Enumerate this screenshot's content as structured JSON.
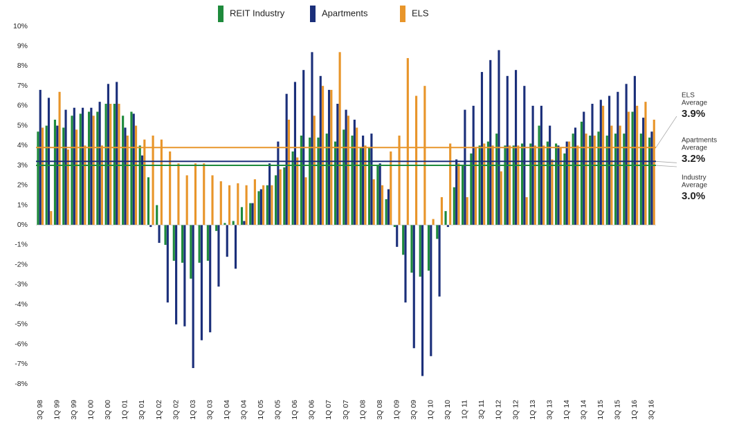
{
  "chart_data": {
    "type": "bar",
    "categories": [
      "3Q 98",
      null,
      "1Q 99",
      null,
      "3Q 99",
      null,
      "1Q 00",
      null,
      "3Q 00",
      null,
      "1Q 01",
      null,
      "3Q 01",
      null,
      "1Q 02",
      null,
      "3Q 02",
      null,
      "1Q 03",
      null,
      "3Q 03",
      null,
      "1Q 04",
      null,
      "3Q 04",
      null,
      "1Q 05",
      null,
      "3Q 05",
      null,
      "1Q 06",
      null,
      "3Q 06",
      null,
      "1Q 07",
      null,
      "3Q 07",
      null,
      "1Q 08",
      null,
      "3Q 08",
      null,
      "1Q 09",
      null,
      "3Q 09",
      null,
      "1Q 10",
      null,
      "3Q 10",
      null,
      "1Q 11",
      null,
      "3Q 11",
      null,
      "1Q 12",
      null,
      "3Q 12",
      null,
      "1Q 13",
      null,
      "3Q 13",
      null,
      "1Q 14",
      null,
      "3Q 14",
      null,
      "1Q 15",
      null,
      "3Q 15",
      null,
      "1Q 16",
      null,
      "3Q 16"
    ],
    "series": [
      {
        "name": "REIT Industry",
        "color": "#1e8a3c",
        "values": [
          4.7,
          5.0,
          5.3,
          4.9,
          5.5,
          5.6,
          5.7,
          5.7,
          6.1,
          6.1,
          5.5,
          5.7,
          4.0,
          2.4,
          1.0,
          -1.0,
          -1.8,
          -1.9,
          -2.7,
          -1.9,
          -1.8,
          -0.3,
          0.1,
          0.2,
          0.9,
          1.1,
          1.7,
          2.0,
          2.5,
          2.9,
          3.7,
          4.5,
          4.4,
          4.4,
          4.6,
          4.2,
          4.8,
          4.5,
          3.9,
          3.9,
          3.0,
          1.3,
          -0.1,
          -1.5,
          -2.4,
          -2.6,
          -2.3,
          -0.7,
          0.7,
          1.9,
          3.0,
          3.6,
          4.0,
          4.2,
          4.6,
          4.0,
          4.0,
          4.1,
          4.1,
          5.0,
          4.2,
          4.1,
          3.6,
          4.6,
          5.2,
          4.5,
          4.7,
          4.5,
          4.6,
          4.6,
          5.7,
          4.6,
          4.4
        ]
      },
      {
        "name": "Apartments",
        "color": "#1b2f7a",
        "values": [
          6.8,
          6.4,
          5.0,
          5.8,
          5.9,
          5.9,
          5.9,
          6.2,
          7.1,
          7.2,
          4.9,
          5.6,
          3.5,
          -0.1,
          -0.9,
          -3.9,
          -5.0,
          -5.1,
          -7.2,
          -5.8,
          -5.4,
          -3.1,
          -1.6,
          -2.2,
          0.2,
          1.1,
          1.8,
          3.1,
          4.2,
          6.6,
          7.2,
          7.8,
          8.7,
          7.5,
          6.8,
          6.1,
          5.8,
          5.3,
          4.5,
          4.6,
          3.1,
          1.8,
          -1.1,
          -3.9,
          -6.2,
          -7.6,
          -6.6,
          -3.6,
          -0.1,
          3.3,
          5.8,
          6.0,
          7.7,
          8.3,
          8.8,
          7.5,
          7.8,
          7.0,
          6.0,
          6.0,
          5.0,
          4.0,
          4.2,
          4.9,
          5.7,
          6.1,
          6.3,
          6.5,
          6.7,
          7.1,
          7.5,
          5.4,
          4.7
        ]
      },
      {
        "name": "ELS",
        "color": "#e8952a",
        "values": [
          4.9,
          0.7,
          6.7,
          3.8,
          4.8,
          4.0,
          5.5,
          4.0,
          6.1,
          6.1,
          4.5,
          5.0,
          4.3,
          4.5,
          4.3,
          3.7,
          3.1,
          2.5,
          3.1,
          3.1,
          2.5,
          2.2,
          2.0,
          2.1,
          2.0,
          2.3,
          2.0,
          2.0,
          2.8,
          5.3,
          3.4,
          2.4,
          5.5,
          7.0,
          6.8,
          8.7,
          5.5,
          4.9,
          4.0,
          2.3,
          2.0,
          3.7,
          4.5,
          8.4,
          6.5,
          7.0,
          0.3,
          1.4,
          4.1,
          3.1,
          1.4,
          3.9,
          4.1,
          4.0,
          2.7,
          4.0,
          4.0,
          1.4,
          4.0,
          4.0,
          3.3,
          3.9,
          4.2,
          4.0,
          4.6,
          4.5,
          6.0,
          5.0,
          5.0,
          5.7,
          6.0,
          6.2,
          5.3
        ]
      }
    ],
    "annotations": [
      {
        "label": [
          "ELS",
          "Average"
        ],
        "value": 3.9,
        "value_label": "3.9%",
        "color": "#e8952a"
      },
      {
        "label": [
          "Apartments",
          "Average"
        ],
        "value": 3.2,
        "value_label": "3.2%",
        "color": "#1b2f7a"
      },
      {
        "label": [
          "Industry",
          "Average"
        ],
        "value": 3.0,
        "value_label": "3.0%",
        "color": "#1e8a3c"
      }
    ],
    "ylim": [
      -8,
      10
    ],
    "yticks": [
      {
        "value": -8,
        "label": "-8%"
      },
      {
        "value": -7,
        "label": "-7%"
      },
      {
        "value": -6,
        "label": "-6%"
      },
      {
        "value": -5,
        "label": "-5%"
      },
      {
        "value": -4,
        "label": "-4%"
      },
      {
        "value": -3,
        "label": "-3%"
      },
      {
        "value": -2,
        "label": "-2%"
      },
      {
        "value": -1,
        "label": "-1%"
      },
      {
        "value": 0,
        "label": "0%"
      },
      {
        "value": 1,
        "label": "1%"
      },
      {
        "value": 2,
        "label": "2%"
      },
      {
        "value": 3,
        "label": "3%"
      },
      {
        "value": 4,
        "label": "4%"
      },
      {
        "value": 5,
        "label": "5%"
      },
      {
        "value": 6,
        "label": "6%"
      },
      {
        "value": 7,
        "label": "7%"
      },
      {
        "value": 8,
        "label": "8%"
      },
      {
        "value": 9,
        "label": "9%"
      },
      {
        "value": 10,
        "label": "10%"
      }
    ],
    "legend": "top"
  }
}
